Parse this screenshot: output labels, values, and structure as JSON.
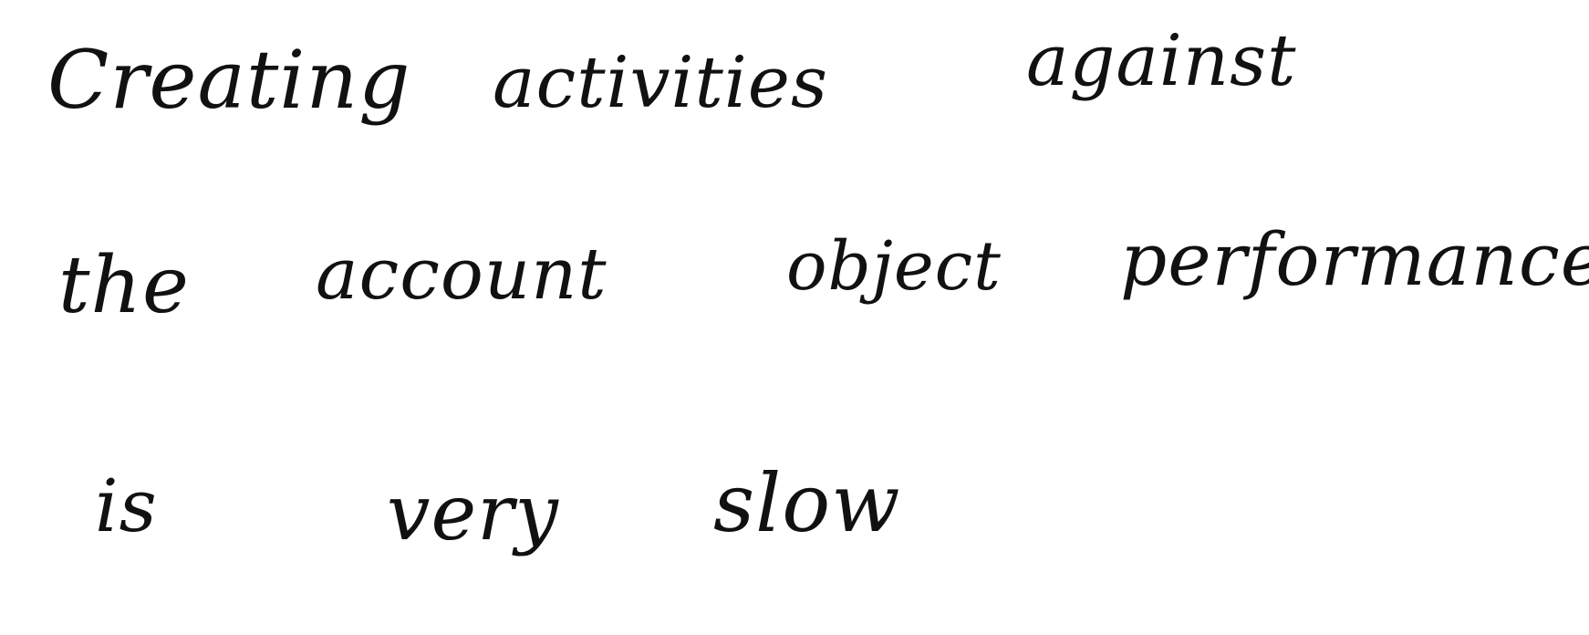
{
  "document": {
    "lines": [
      {
        "words": [
          "Creating",
          "activities",
          "against"
        ]
      },
      {
        "words": [
          "the",
          "account",
          "object",
          "performance"
        ]
      },
      {
        "words": [
          "is",
          "very",
          "slow"
        ]
      }
    ]
  }
}
